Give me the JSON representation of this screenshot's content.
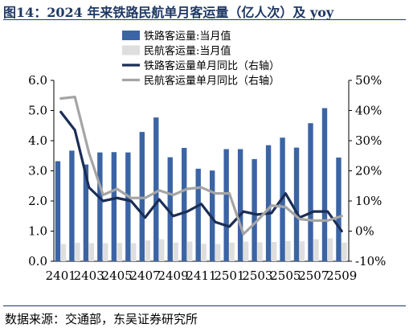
{
  "title": "图14：2024 年来铁路民航单月客运量（亿人次）及 yoy",
  "source": "数据来源：交通部，东吴证券研究所",
  "chart_data": {
    "type": "bar",
    "categories": [
      "2401",
      "2402",
      "2403",
      "2404",
      "2405",
      "2406",
      "2407",
      "2408",
      "2409",
      "2410",
      "2411",
      "2412",
      "2501",
      "2502",
      "2503",
      "2504",
      "2505",
      "2506",
      "2507",
      "2508",
      "2509"
    ],
    "x_tick_labels": [
      "2401",
      "2403",
      "2405",
      "2407",
      "2409",
      "2411",
      "2501",
      "2503",
      "2505",
      "2507",
      "2509"
    ],
    "y_left": {
      "min": 0,
      "max": 6,
      "ticks": [
        "0.0",
        "1.0",
        "2.0",
        "3.0",
        "4.0",
        "5.0",
        "6.0"
      ]
    },
    "y_right": {
      "min": -10,
      "max": 50,
      "ticks": [
        "-10%",
        "0%",
        "10%",
        "20%",
        "30%",
        "40%",
        "50%"
      ]
    },
    "legend": {
      "placement": "top-right",
      "entries": [
        "铁路客运量:当月值",
        "民航客运量:当月值",
        "铁路客运量单月同比（右轴）",
        "民航客运量单月同比（右轴）"
      ]
    },
    "series": [
      {
        "name": "铁路客运量:当月值",
        "kind": "bar",
        "axis": "left",
        "color": "#3b64a4",
        "values": [
          3.32,
          3.67,
          3.21,
          3.61,
          3.62,
          3.61,
          4.29,
          4.77,
          3.45,
          3.76,
          3.07,
          3.01,
          3.72,
          3.72,
          3.39,
          3.85,
          4.1,
          3.77,
          4.58,
          5.08,
          3.44
        ]
      },
      {
        "name": "民航客运量:当月值",
        "kind": "bar",
        "axis": "left",
        "color": "#dedede",
        "values": [
          0.57,
          0.61,
          0.6,
          0.6,
          0.61,
          0.6,
          0.69,
          0.73,
          0.62,
          0.65,
          0.58,
          0.57,
          0.62,
          0.65,
          0.63,
          0.64,
          0.67,
          0.66,
          0.73,
          0.76,
          0.62
        ]
      },
      {
        "name": "铁路客运量单月同比（右轴）",
        "kind": "line",
        "axis": "right",
        "color": "#1b2e56",
        "values": [
          39.5,
          33.5,
          14.5,
          10.0,
          11.0,
          10.0,
          4.5,
          10.5,
          5.0,
          6.5,
          9.0,
          3.0,
          1.5,
          6.5,
          5.5,
          6.0,
          12.5,
          4.5,
          6.5,
          6.5,
          0.0
        ]
      },
      {
        "name": "民航客运量单月同比（右轴）",
        "kind": "line",
        "axis": "right",
        "color": "#a5a5a5",
        "values": [
          44.0,
          44.5,
          26.0,
          12.0,
          14.0,
          11.0,
          11.0,
          13.5,
          12.0,
          14.0,
          14.5,
          12.5,
          12.5,
          -1.0,
          3.5,
          8.5,
          8.0,
          4.0,
          3.5,
          3.5,
          5.0
        ]
      }
    ]
  }
}
